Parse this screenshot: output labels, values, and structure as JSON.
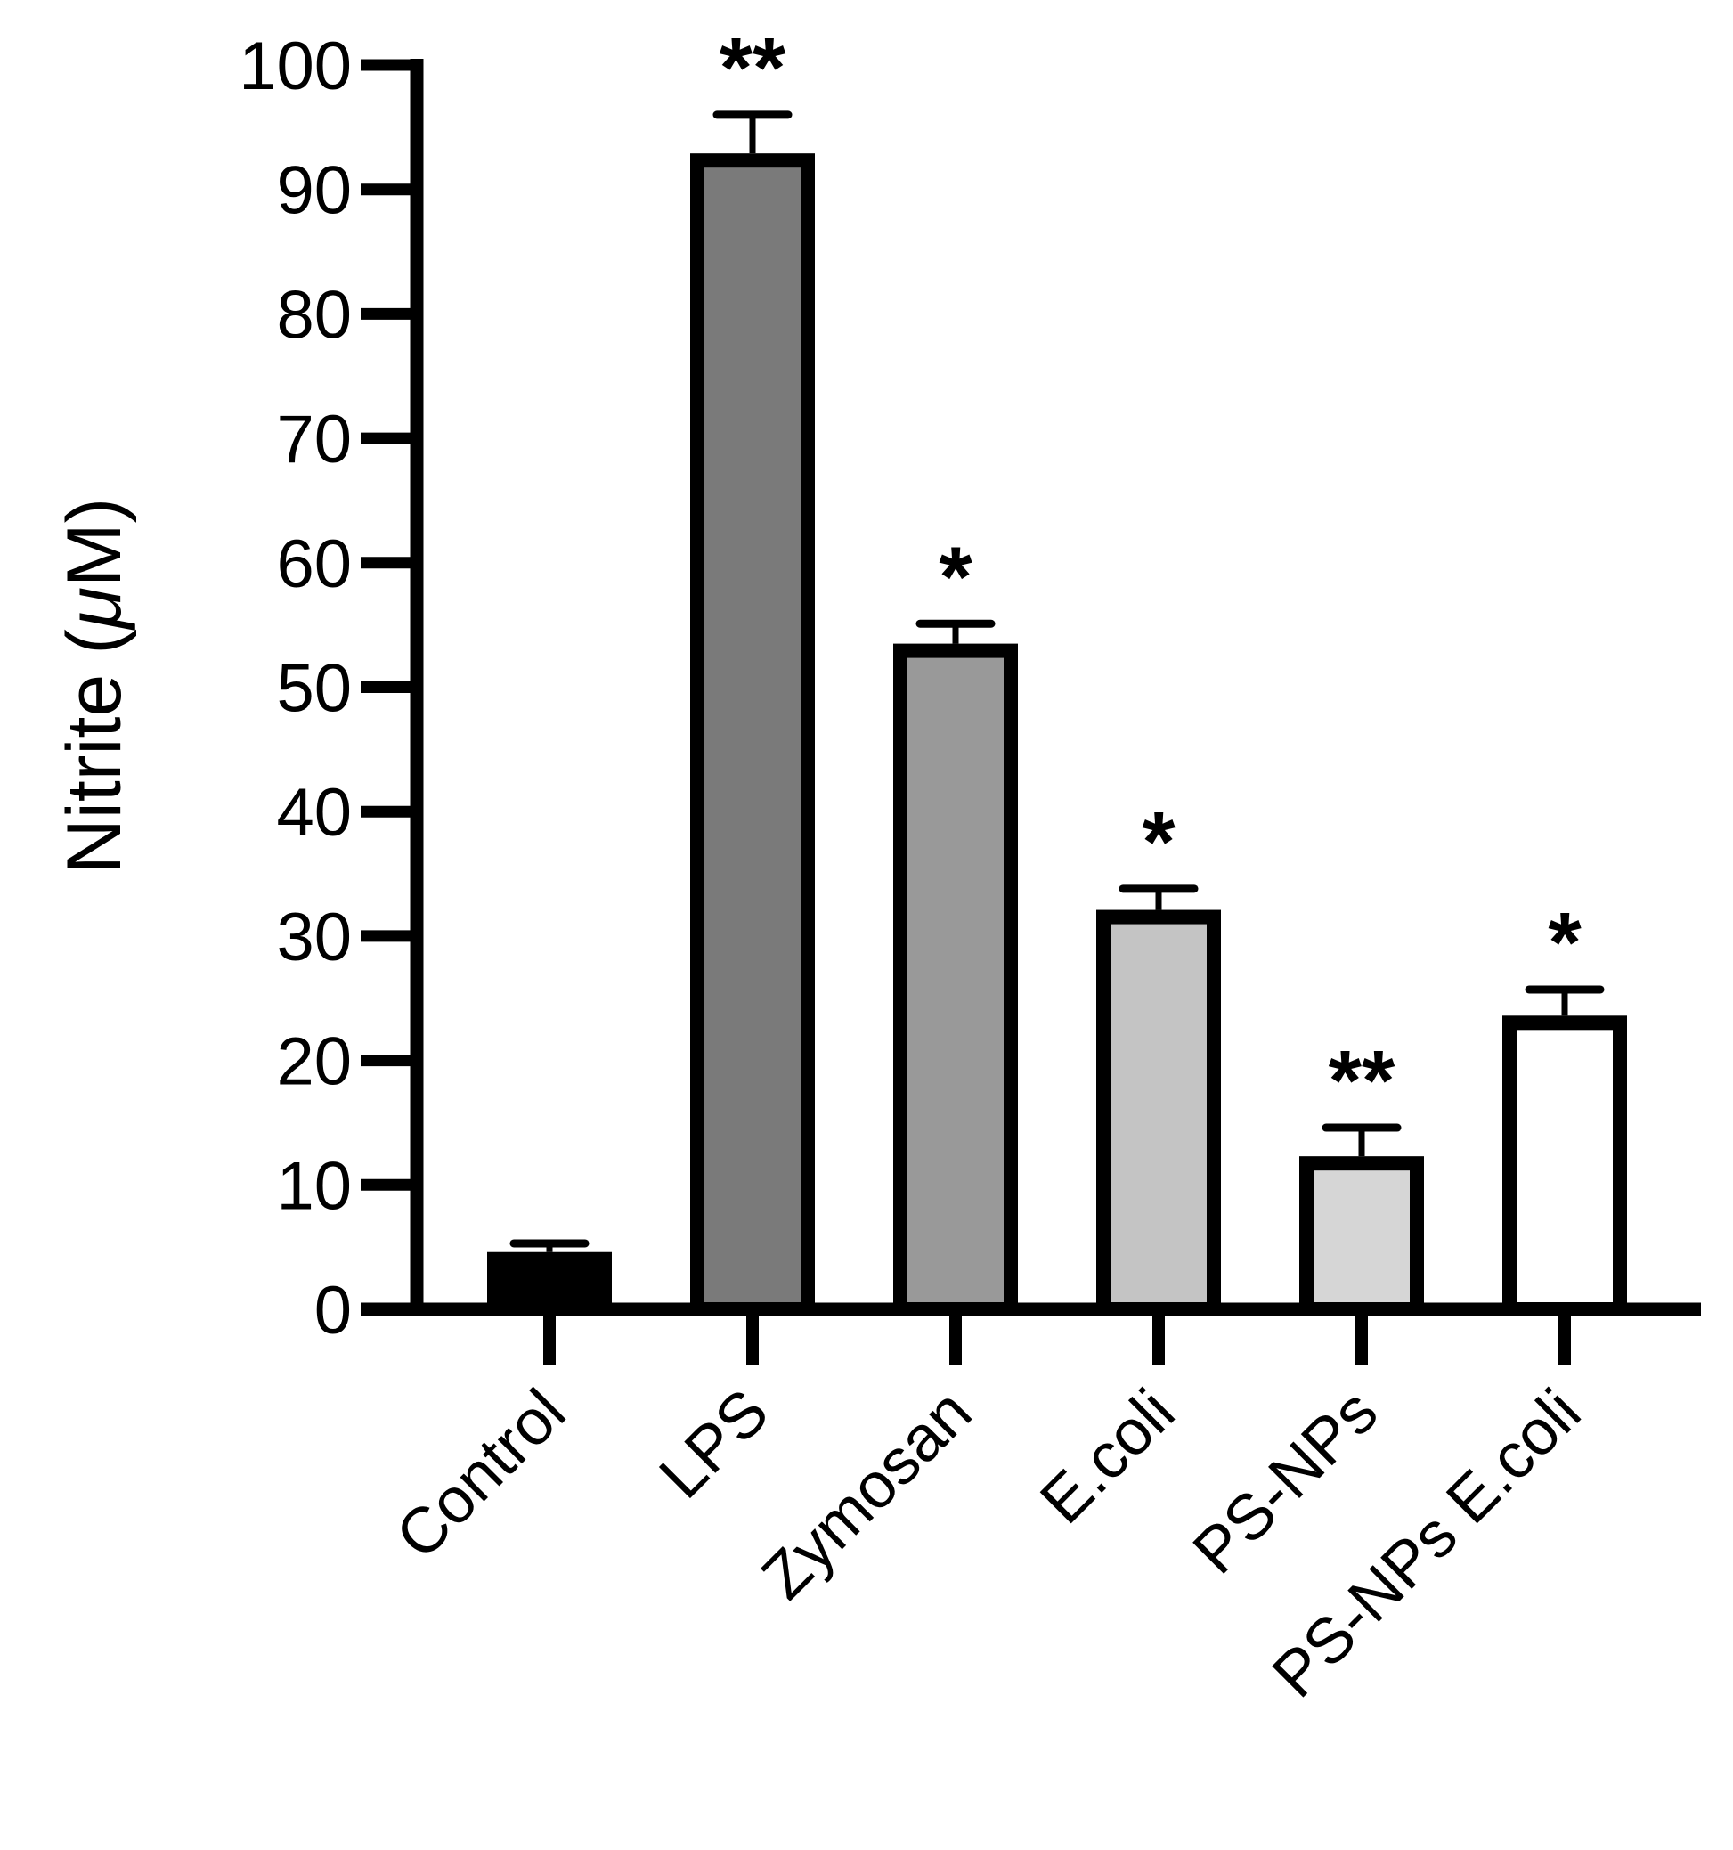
{
  "chart_data": {
    "type": "bar",
    "title": "",
    "xlabel": "",
    "ylabel": "Nitrite (μM)",
    "ylabel_parts": {
      "text": "Nitrite",
      "unit_open": "(",
      "unit_mu": "μ",
      "unit_rest": "M)"
    },
    "ylim": [
      0,
      100
    ],
    "yticks": [
      0,
      10,
      20,
      30,
      40,
      50,
      60,
      70,
      80,
      90,
      100
    ],
    "grid": false,
    "legend": null,
    "categories": [
      "Control",
      "LPS",
      "Zymosan",
      "E.coli",
      "PS-NPs",
      "PS-NPs E.coli"
    ],
    "values": [
      4.6,
      92.9,
      53.5,
      32.1,
      12.3,
      23.6
    ],
    "errors": [
      0.7,
      3.1,
      1.6,
      1.7,
      2.3,
      2.1
    ],
    "significance": [
      "",
      "**",
      "*",
      "*",
      "**",
      "*"
    ],
    "bar_fill_colors": [
      "#000000",
      "#7a7a7a",
      "#999999",
      "#c4c4c4",
      "#d6d6d6",
      "#ffffff"
    ],
    "bar_edge_color": "#000000"
  }
}
